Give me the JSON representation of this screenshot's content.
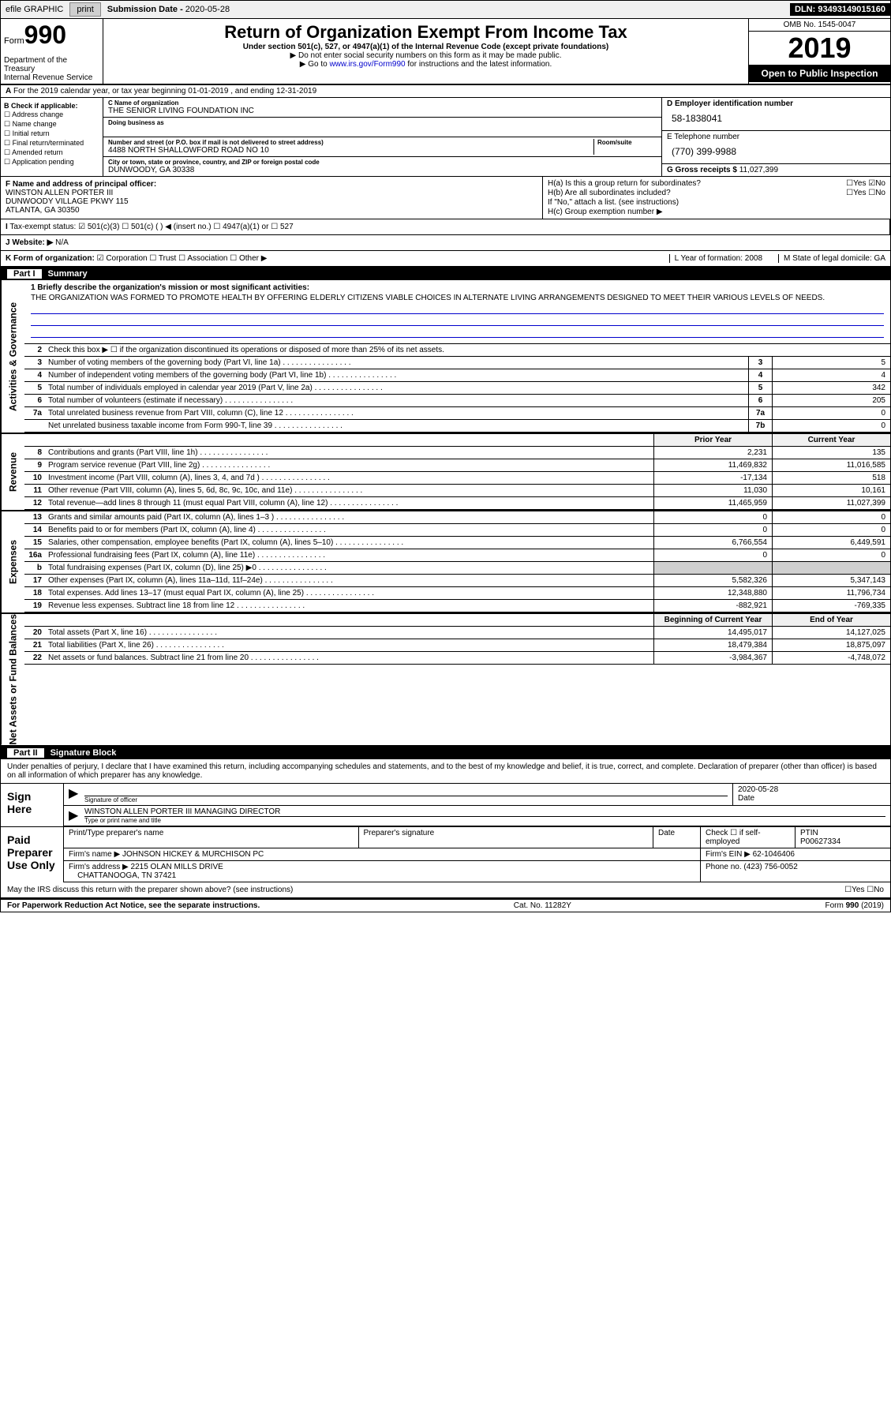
{
  "topbar": {
    "efile": "efile GRAPHIC",
    "print": "print",
    "subdate_label": "Submission Date -",
    "subdate": "2020-05-28",
    "dln": "DLN: 93493149015160"
  },
  "header": {
    "form": "Form",
    "formnum": "990",
    "dept": "Department of the Treasury",
    "irs": "Internal Revenue Service",
    "title": "Return of Organization Exempt From Income Tax",
    "sub1": "Under section 501(c), 527, or 4947(a)(1) of the Internal Revenue Code (except private foundations)",
    "sub2": "▶ Do not enter social security numbers on this form as it may be made public.",
    "sub3a": "▶ Go to ",
    "sub3link": "www.irs.gov/Form990",
    "sub3b": " for instructions and the latest information.",
    "omb": "OMB No. 1545-0047",
    "year": "2019",
    "openpub": "Open to Public Inspection"
  },
  "rowA": "For the 2019 calendar year, or tax year beginning 01-01-2019  , and ending 12-31-2019",
  "boxB": {
    "label": "B Check if applicable:",
    "items": [
      "Address change",
      "Name change",
      "Initial return",
      "Final return/terminated",
      "Amended return",
      "Application pending"
    ]
  },
  "boxC": {
    "name_lbl": "C Name of organization",
    "name": "THE SENIOR LIVING FOUNDATION INC",
    "dba_lbl": "Doing business as",
    "addr_lbl": "Number and street (or P.O. box if mail is not delivered to street address)",
    "room_lbl": "Room/suite",
    "addr": "4488 NORTH SHALLOWFORD ROAD NO 10",
    "city_lbl": "City or town, state or province, country, and ZIP or foreign postal code",
    "city": "DUNWOODY, GA  30338"
  },
  "boxD": {
    "lbl": "D Employer identification number",
    "val": "58-1838041"
  },
  "boxE": {
    "lbl": "E Telephone number",
    "val": "(770) 399-9988"
  },
  "boxG": {
    "lbl": "G Gross receipts $",
    "val": "11,027,399"
  },
  "boxF": {
    "lbl": "F  Name and address of principal officer:",
    "name": "WINSTON ALLEN PORTER III",
    "addr1": "DUNWOODY VILLAGE PKWY 115",
    "addr2": "ATLANTA, GA  30350"
  },
  "boxH": {
    "a": "H(a)  Is this a group return for subordinates?",
    "b": "H(b)  Are all subordinates included?",
    "note": "If \"No,\" attach a list. (see instructions)",
    "c": "H(c)  Group exemption number ▶",
    "yes": "Yes",
    "no": "No"
  },
  "rowI": {
    "lbl": "Tax-exempt status:",
    "opt1": "501(c)(3)",
    "opt2": "501(c) (  ) ◀ (insert no.)",
    "opt3": "4947(a)(1) or",
    "opt4": "527"
  },
  "rowJ": {
    "lbl": "J  Website: ▶",
    "val": "N/A"
  },
  "rowK": {
    "lbl": "K Form of organization:",
    "opts": [
      "Corporation",
      "Trust",
      "Association",
      "Other ▶"
    ],
    "L": "L Year of formation: 2008",
    "M": "M State of legal domicile: GA"
  },
  "part1": {
    "num": "Part I",
    "title": "Summary"
  },
  "mission": {
    "lbl": "1  Briefly describe the organization's mission or most significant activities:",
    "text": "THE ORGANIZATION WAS FORMED TO PROMOTE HEALTH BY OFFERING ELDERLY CITIZENS VIABLE CHOICES IN ALTERNATE LIVING ARRANGEMENTS DESIGNED TO MEET THEIR VARIOUS LEVELS OF NEEDS."
  },
  "line2": "Check this box ▶ ☐  if the organization discontinued its operations or disposed of more than 25% of its net assets.",
  "gov_lines": [
    {
      "n": "3",
      "d": "Number of voting members of the governing body (Part VI, line 1a)",
      "b": "3",
      "v": "5"
    },
    {
      "n": "4",
      "d": "Number of independent voting members of the governing body (Part VI, line 1b)",
      "b": "4",
      "v": "4"
    },
    {
      "n": "5",
      "d": "Total number of individuals employed in calendar year 2019 (Part V, line 2a)",
      "b": "5",
      "v": "342"
    },
    {
      "n": "6",
      "d": "Total number of volunteers (estimate if necessary)",
      "b": "6",
      "v": "205"
    },
    {
      "n": "7a",
      "d": "Total unrelated business revenue from Part VIII, column (C), line 12",
      "b": "7a",
      "v": "0"
    },
    {
      "n": "",
      "d": "Net unrelated business taxable income from Form 990-T, line 39",
      "b": "7b",
      "v": "0"
    }
  ],
  "col_hdrs": {
    "prior": "Prior Year",
    "current": "Current Year"
  },
  "rev_lines": [
    {
      "n": "8",
      "d": "Contributions and grants (Part VIII, line 1h)",
      "p": "2,231",
      "c": "135"
    },
    {
      "n": "9",
      "d": "Program service revenue (Part VIII, line 2g)",
      "p": "11,469,832",
      "c": "11,016,585"
    },
    {
      "n": "10",
      "d": "Investment income (Part VIII, column (A), lines 3, 4, and 7d )",
      "p": "-17,134",
      "c": "518"
    },
    {
      "n": "11",
      "d": "Other revenue (Part VIII, column (A), lines 5, 6d, 8c, 9c, 10c, and 11e)",
      "p": "11,030",
      "c": "10,161"
    },
    {
      "n": "12",
      "d": "Total revenue—add lines 8 through 11 (must equal Part VIII, column (A), line 12)",
      "p": "11,465,959",
      "c": "11,027,399"
    }
  ],
  "exp_lines": [
    {
      "n": "13",
      "d": "Grants and similar amounts paid (Part IX, column (A), lines 1–3 )",
      "p": "0",
      "c": "0"
    },
    {
      "n": "14",
      "d": "Benefits paid to or for members (Part IX, column (A), line 4)",
      "p": "0",
      "c": "0"
    },
    {
      "n": "15",
      "d": "Salaries, other compensation, employee benefits (Part IX, column (A), lines 5–10)",
      "p": "6,766,554",
      "c": "6,449,591"
    },
    {
      "n": "16a",
      "d": "Professional fundraising fees (Part IX, column (A), line 11e)",
      "p": "0",
      "c": "0"
    },
    {
      "n": "b",
      "d": "Total fundraising expenses (Part IX, column (D), line 25) ▶0",
      "p": "",
      "c": "",
      "shaded": true
    },
    {
      "n": "17",
      "d": "Other expenses (Part IX, column (A), lines 11a–11d, 11f–24e)",
      "p": "5,582,326",
      "c": "5,347,143"
    },
    {
      "n": "18",
      "d": "Total expenses. Add lines 13–17 (must equal Part IX, column (A), line 25)",
      "p": "12,348,880",
      "c": "11,796,734"
    },
    {
      "n": "19",
      "d": "Revenue less expenses. Subtract line 18 from line 12",
      "p": "-882,921",
      "c": "-769,335"
    }
  ],
  "net_hdrs": {
    "begin": "Beginning of Current Year",
    "end": "End of Year"
  },
  "net_lines": [
    {
      "n": "20",
      "d": "Total assets (Part X, line 16)",
      "p": "14,495,017",
      "c": "14,127,025"
    },
    {
      "n": "21",
      "d": "Total liabilities (Part X, line 26)",
      "p": "18,479,384",
      "c": "18,875,097"
    },
    {
      "n": "22",
      "d": "Net assets or fund balances. Subtract line 21 from line 20",
      "p": "-3,984,367",
      "c": "-4,748,072"
    }
  ],
  "part2": {
    "num": "Part II",
    "title": "Signature Block"
  },
  "sig": {
    "intro": "Under penalties of perjury, I declare that I have examined this return, including accompanying schedules and statements, and to the best of my knowledge and belief, it is true, correct, and complete. Declaration of preparer (other than officer) is based on all information of which preparer has any knowledge.",
    "signhere": "Sign Here",
    "officer_lbl": "Signature of officer",
    "date_lbl": "Date",
    "date": "2020-05-28",
    "officer": "WINSTON ALLEN PORTER III MANAGING DIRECTOR",
    "officer_sub": "Type or print name and title",
    "paid": "Paid Preparer Use Only",
    "prep_name_lbl": "Print/Type preparer's name",
    "prep_sig_lbl": "Preparer's signature",
    "check_lbl": "Check ☐ if self-employed",
    "ptin_lbl": "PTIN",
    "ptin": "P00627334",
    "firm_lbl": "Firm's name    ▶",
    "firm": "JOHNSON HICKEY & MURCHISON PC",
    "ein_lbl": "Firm's EIN ▶",
    "ein": "62-1046406",
    "addr_lbl": "Firm's address ▶",
    "addr1": "2215 OLAN MILLS DRIVE",
    "addr2": "CHATTANOOGA, TN  37421",
    "phone_lbl": "Phone no.",
    "phone": "(423) 756-0052",
    "discuss": "May the IRS discuss this return with the preparer shown above? (see instructions)"
  },
  "footer": {
    "left": "For Paperwork Reduction Act Notice, see the separate instructions.",
    "mid": "Cat. No. 11282Y",
    "right": "Form 990 (2019)"
  },
  "side_labels": {
    "gov": "Activities & Governance",
    "rev": "Revenue",
    "exp": "Expenses",
    "net": "Net Assets or Fund Balances"
  }
}
